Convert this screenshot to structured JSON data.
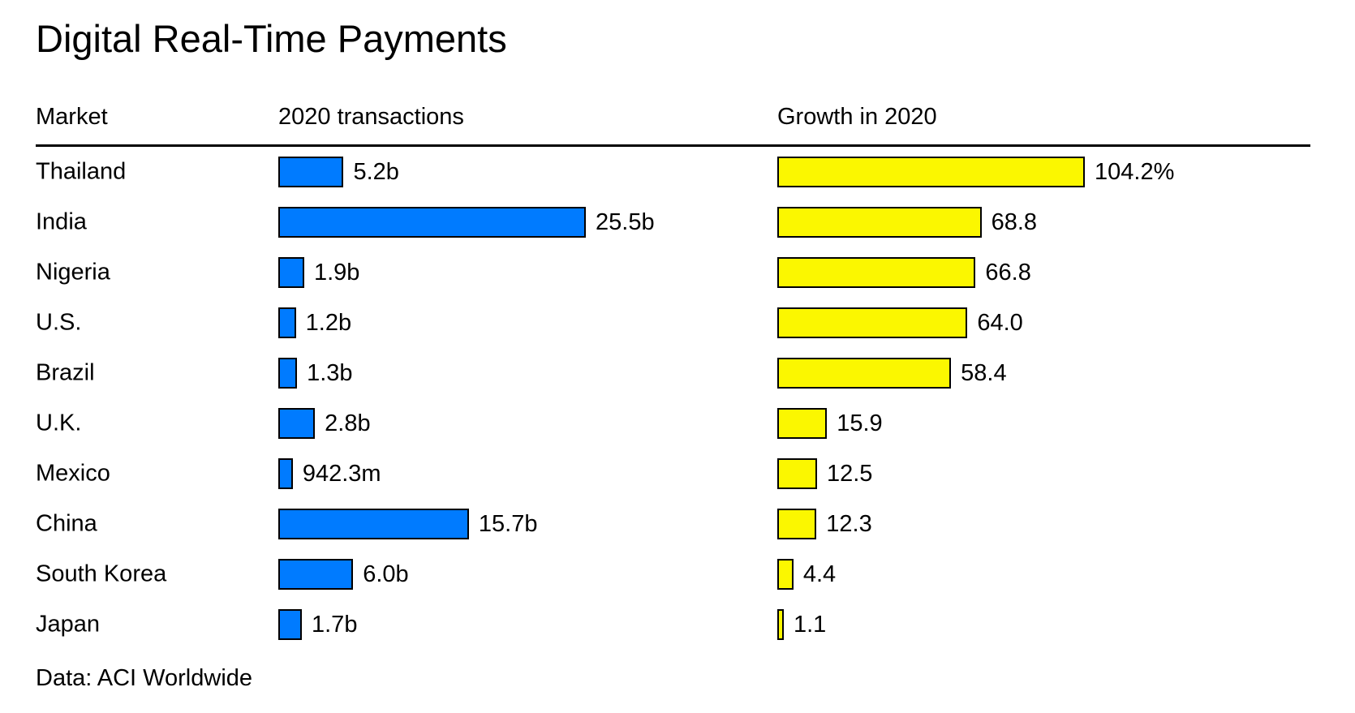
{
  "title": "Digital Real-Time Payments",
  "source": "Data: ACI Worldwide",
  "columns": {
    "market": "Market",
    "transactions": "2020 transactions",
    "growth": "Growth in 2020"
  },
  "colors": {
    "background": "#ffffff",
    "text": "#000000",
    "rule": "#000000",
    "bar_border": "#000000",
    "transactions_bar": "#007bff",
    "growth_bar": "#fbf700"
  },
  "chart_data": {
    "type": "bar",
    "orientation": "horizontal",
    "title": "Digital Real-Time Payments",
    "source": "Data: ACI Worldwide",
    "grid": false,
    "legend": false,
    "categories": [
      "Thailand",
      "India",
      "Nigeria",
      "U.S.",
      "Brazil",
      "U.K.",
      "Mexico",
      "China",
      "South Korea",
      "Japan"
    ],
    "series": [
      {
        "name": "2020 transactions",
        "unit": "billions of transactions",
        "xlim": [
          0,
          25.5
        ],
        "values": [
          5.2,
          25.5,
          1.9,
          1.2,
          1.3,
          2.8,
          0.9423,
          15.7,
          6.0,
          1.7
        ],
        "labels": [
          "5.2b",
          "25.5b",
          "1.9b",
          "1.2b",
          "1.3b",
          "2.8b",
          "942.3m",
          "15.7b",
          "6.0b",
          "1.7b"
        ]
      },
      {
        "name": "Growth in 2020",
        "unit": "percent",
        "xlim": [
          0,
          104.2
        ],
        "values": [
          104.2,
          68.8,
          66.8,
          64.0,
          58.4,
          15.9,
          12.5,
          12.3,
          4.4,
          1.1
        ],
        "labels": [
          "104.2%",
          "68.8",
          "66.8",
          "64.0",
          "58.4",
          "15.9",
          "12.5",
          "12.3",
          "4.4",
          "1.1"
        ]
      }
    ]
  }
}
